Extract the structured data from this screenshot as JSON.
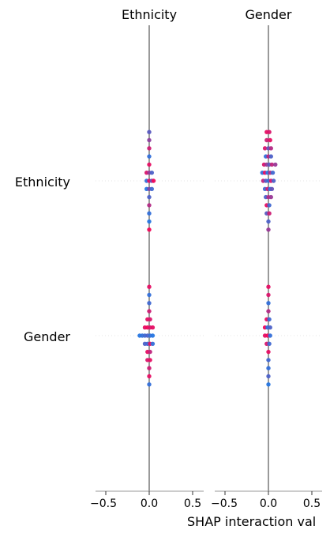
{
  "chart_data": {
    "type": "scatter",
    "subtype": "shap-interaction-summary",
    "xlabel": "SHAP interaction val",
    "features": [
      "Ethnicity",
      "Gender"
    ],
    "panels": [
      {
        "title": "Ethnicity",
        "xlim": [
          -0.65,
          0.65
        ],
        "xticks": [
          -0.5,
          0.0,
          0.5
        ],
        "xtick_labels": [
          "−0.5",
          "0.0",
          "0.5"
        ]
      },
      {
        "title": "Gender",
        "xlim": [
          -0.65,
          0.65
        ],
        "xticks": [
          -0.5,
          0.0,
          0.5
        ],
        "xtick_labels": [
          "−0.5",
          "0.0",
          "0.5"
        ]
      }
    ],
    "colors": {
      "high": "#ff0052",
      "low": "#008bfb",
      "mid": "#7f4dc0",
      "axis": "#999999",
      "zero_line": "#808080"
    },
    "cells": [
      {
        "row": "Ethnicity",
        "col": "Ethnicity",
        "points": [
          {
            "x": 0.0,
            "d": -6.0,
            "c": 0.35
          },
          {
            "x": 0.0,
            "d": -5.0,
            "c": 0.55
          },
          {
            "x": 0.0,
            "d": -4.0,
            "c": 0.8
          },
          {
            "x": 0.0,
            "d": -3.0,
            "c": 0.2
          },
          {
            "x": 0.0,
            "d": -2.0,
            "c": 0.9
          },
          {
            "x": -0.03,
            "d": -1.0,
            "c": 0.85
          },
          {
            "x": 0.0,
            "d": -1.0,
            "c": 0.6
          },
          {
            "x": 0.03,
            "d": -1.0,
            "c": 0.3
          },
          {
            "x": -0.03,
            "d": 0.0,
            "c": 0.2
          },
          {
            "x": 0.0,
            "d": 0.0,
            "c": 0.9
          },
          {
            "x": 0.03,
            "d": 0.0,
            "c": 0.4
          },
          {
            "x": 0.05,
            "d": 0.0,
            "c": 0.95
          },
          {
            "x": -0.03,
            "d": 1.0,
            "c": 0.15
          },
          {
            "x": 0.0,
            "d": 1.0,
            "c": 0.5
          },
          {
            "x": 0.03,
            "d": 1.0,
            "c": 0.25
          },
          {
            "x": 0.0,
            "d": 2.0,
            "c": 0.3
          },
          {
            "x": 0.0,
            "d": 3.0,
            "c": 0.7
          },
          {
            "x": 0.0,
            "d": 4.0,
            "c": 0.2
          },
          {
            "x": 0.0,
            "d": 5.0,
            "c": 0.15
          },
          {
            "x": 0.0,
            "d": 6.0,
            "c": 0.95
          }
        ]
      },
      {
        "row": "Ethnicity",
        "col": "Gender",
        "points": [
          {
            "x": -0.02,
            "d": -6.0,
            "c": 0.9
          },
          {
            "x": 0.01,
            "d": -6.0,
            "c": 0.85
          },
          {
            "x": -0.02,
            "d": -5.0,
            "c": 0.8
          },
          {
            "x": 0.02,
            "d": -5.0,
            "c": 0.9
          },
          {
            "x": -0.04,
            "d": -4.0,
            "c": 0.85
          },
          {
            "x": 0.0,
            "d": -4.0,
            "c": 0.4
          },
          {
            "x": 0.03,
            "d": -4.0,
            "c": 0.7
          },
          {
            "x": -0.03,
            "d": -3.0,
            "c": 0.2
          },
          {
            "x": 0.0,
            "d": -3.0,
            "c": 0.75
          },
          {
            "x": 0.03,
            "d": -3.0,
            "c": 0.3
          },
          {
            "x": -0.05,
            "d": -2.0,
            "c": 0.85
          },
          {
            "x": -0.02,
            "d": -2.0,
            "c": 0.6
          },
          {
            "x": 0.01,
            "d": -2.0,
            "c": 0.35
          },
          {
            "x": 0.04,
            "d": -2.0,
            "c": 0.75
          },
          {
            "x": 0.08,
            "d": -2.0,
            "c": 0.6
          },
          {
            "x": -0.07,
            "d": -1.0,
            "c": 0.2
          },
          {
            "x": -0.04,
            "d": -1.0,
            "c": 0.9
          },
          {
            "x": -0.01,
            "d": -1.0,
            "c": 0.15
          },
          {
            "x": 0.02,
            "d": -1.0,
            "c": 0.7
          },
          {
            "x": 0.05,
            "d": -1.0,
            "c": 0.25
          },
          {
            "x": -0.06,
            "d": 0.0,
            "c": 0.75
          },
          {
            "x": -0.03,
            "d": 0.0,
            "c": 0.35
          },
          {
            "x": 0.0,
            "d": 0.0,
            "c": 0.2
          },
          {
            "x": 0.03,
            "d": 0.0,
            "c": 0.85
          },
          {
            "x": 0.06,
            "d": 0.0,
            "c": 0.3
          },
          {
            "x": -0.04,
            "d": 1.0,
            "c": 0.25
          },
          {
            "x": -0.01,
            "d": 1.0,
            "c": 0.8
          },
          {
            "x": 0.02,
            "d": 1.0,
            "c": 0.15
          },
          {
            "x": 0.04,
            "d": 1.0,
            "c": 0.4
          },
          {
            "x": -0.03,
            "d": 2.0,
            "c": 0.3
          },
          {
            "x": 0.0,
            "d": 2.0,
            "c": 0.7
          },
          {
            "x": 0.03,
            "d": 2.0,
            "c": 0.6
          },
          {
            "x": -0.02,
            "d": 3.0,
            "c": 0.9
          },
          {
            "x": 0.01,
            "d": 3.0,
            "c": 0.25
          },
          {
            "x": -0.02,
            "d": 4.0,
            "c": 0.35
          },
          {
            "x": 0.01,
            "d": 4.0,
            "c": 0.8
          },
          {
            "x": 0.0,
            "d": 5.0,
            "c": 0.3
          },
          {
            "x": 0.0,
            "d": 6.0,
            "c": 0.6
          }
        ]
      },
      {
        "row": "Gender",
        "col": "Ethnicity",
        "points": [
          {
            "x": 0.0,
            "d": -6.0,
            "c": 0.9
          },
          {
            "x": 0.0,
            "d": -5.0,
            "c": 0.2
          },
          {
            "x": 0.0,
            "d": -4.0,
            "c": 0.25
          },
          {
            "x": 0.0,
            "d": -3.0,
            "c": 0.8
          },
          {
            "x": -0.02,
            "d": -2.0,
            "c": 0.9
          },
          {
            "x": 0.01,
            "d": -2.0,
            "c": 0.85
          },
          {
            "x": -0.05,
            "d": -1.0,
            "c": 0.9
          },
          {
            "x": -0.02,
            "d": -1.0,
            "c": 0.95
          },
          {
            "x": 0.01,
            "d": -1.0,
            "c": 0.85
          },
          {
            "x": 0.04,
            "d": -1.0,
            "c": 0.9
          },
          {
            "x": -0.11,
            "d": 0.0,
            "c": 0.15
          },
          {
            "x": -0.08,
            "d": 0.0,
            "c": 0.2
          },
          {
            "x": -0.05,
            "d": 0.0,
            "c": 0.25
          },
          {
            "x": -0.02,
            "d": 0.0,
            "c": 0.3
          },
          {
            "x": 0.01,
            "d": 0.0,
            "c": 0.2
          },
          {
            "x": 0.04,
            "d": 0.0,
            "c": 0.15
          },
          {
            "x": -0.05,
            "d": 1.0,
            "c": 0.3
          },
          {
            "x": -0.02,
            "d": 1.0,
            "c": 0.25
          },
          {
            "x": 0.01,
            "d": 1.0,
            "c": 0.9
          },
          {
            "x": 0.04,
            "d": 1.0,
            "c": 0.2
          },
          {
            "x": -0.02,
            "d": 2.0,
            "c": 0.9
          },
          {
            "x": 0.01,
            "d": 2.0,
            "c": 0.75
          },
          {
            "x": -0.02,
            "d": 3.0,
            "c": 0.85
          },
          {
            "x": 0.01,
            "d": 3.0,
            "c": 0.9
          },
          {
            "x": 0.0,
            "d": 4.0,
            "c": 0.8
          },
          {
            "x": 0.0,
            "d": 5.0,
            "c": 0.9
          },
          {
            "x": 0.0,
            "d": 6.0,
            "c": 0.2
          }
        ]
      },
      {
        "row": "Gender",
        "col": "Gender",
        "points": [
          {
            "x": 0.0,
            "d": -6.0,
            "c": 0.9
          },
          {
            "x": 0.0,
            "d": -5.0,
            "c": 0.85
          },
          {
            "x": 0.0,
            "d": -4.0,
            "c": 0.2
          },
          {
            "x": 0.0,
            "d": -3.0,
            "c": 0.7
          },
          {
            "x": -0.02,
            "d": -2.0,
            "c": 0.9
          },
          {
            "x": 0.01,
            "d": -2.0,
            "c": 0.25
          },
          {
            "x": -0.04,
            "d": -1.0,
            "c": 0.95
          },
          {
            "x": -0.01,
            "d": -1.0,
            "c": 0.2
          },
          {
            "x": 0.02,
            "d": -1.0,
            "c": 0.3
          },
          {
            "x": -0.04,
            "d": 0.0,
            "c": 0.9
          },
          {
            "x": -0.01,
            "d": 0.0,
            "c": 0.95
          },
          {
            "x": 0.02,
            "d": 0.0,
            "c": 0.2
          },
          {
            "x": -0.02,
            "d": 1.0,
            "c": 0.85
          },
          {
            "x": 0.01,
            "d": 1.0,
            "c": 0.25
          },
          {
            "x": 0.0,
            "d": 2.0,
            "c": 0.9
          },
          {
            "x": 0.0,
            "d": 3.0,
            "c": 0.25
          },
          {
            "x": 0.0,
            "d": 4.0,
            "c": 0.2
          },
          {
            "x": 0.0,
            "d": 5.0,
            "c": 0.3
          },
          {
            "x": 0.0,
            "d": 6.0,
            "c": 0.15
          }
        ]
      }
    ]
  }
}
